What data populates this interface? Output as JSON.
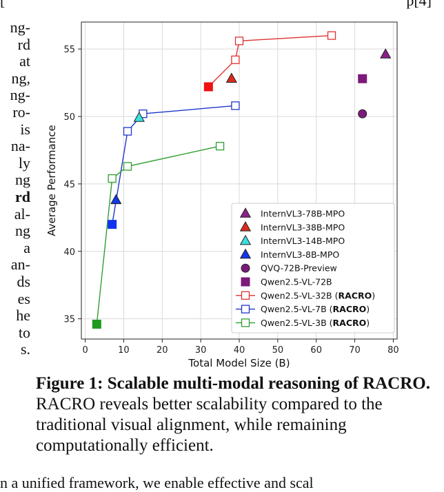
{
  "left_fragments": [
    "ng-",
    "rd",
    "at",
    "ng,",
    "ng-",
    "ro-",
    "is",
    "na-",
    "ly",
    "ng",
    "rd",
    "al-",
    "ng",
    "a",
    "an-",
    "ds",
    "es",
    "he",
    "to",
    "s."
  ],
  "top_fragment": {
    "left": "[",
    "right": "p[4]"
  },
  "bottom_fragment": "n a unified framework, we enable effective and scal",
  "chart_data": {
    "type": "scatter",
    "xlabel": "Total Model Size (B)",
    "ylabel": "Average Performance",
    "xlim": [
      -1,
      81
    ],
    "ylim": [
      33.5,
      57
    ],
    "xticks": [
      0,
      10,
      20,
      30,
      40,
      50,
      60,
      70,
      80
    ],
    "yticks": [
      35,
      40,
      45,
      50,
      55
    ],
    "grid": true,
    "legend_position": "lower-right",
    "points": [
      {
        "name": "InternVL3-78B-MPO",
        "marker": "triangle",
        "color": "#8b1f8b",
        "x": 78,
        "y": 54.6
      },
      {
        "name": "InternVL3-38B-MPO",
        "marker": "triangle",
        "color": "#dd2a1e",
        "x": 38,
        "y": 52.8
      },
      {
        "name": "InternVL3-14B-MPO",
        "marker": "triangle",
        "color": "#38e0e0",
        "x": 14,
        "y": 49.9
      },
      {
        "name": "InternVL3-8B-MPO",
        "marker": "triangle",
        "color": "#1437e8",
        "x": 8,
        "y": 43.8
      },
      {
        "name": "QVQ-72B-Preview",
        "marker": "circle",
        "color": "#7b1a7b",
        "x": 72,
        "y": 50.2
      },
      {
        "name": "Qwen2.5-VL-72B",
        "marker": "square",
        "color": "#7b1a7b",
        "x": 72,
        "y": 52.8
      },
      {
        "name": "Qwen2.5-VL-32B",
        "marker": "square",
        "color": "#ee1111",
        "x": 32,
        "y": 52.2
      },
      {
        "name": "Qwen2.5-VL-7B",
        "marker": "square",
        "color": "#1133ee",
        "x": 7,
        "y": 42.0
      },
      {
        "name": "Qwen2.5-VL-3B",
        "marker": "square",
        "color": "#1f9a1f",
        "x": 3,
        "y": 34.6
      }
    ],
    "series": [
      {
        "name": "Qwen2.5-VL-32B (RACRO)",
        "color": "#e03131",
        "x": [
          32,
          39,
          40,
          64
        ],
        "y": [
          52.2,
          54.2,
          55.6,
          56.0
        ]
      },
      {
        "name": "Qwen2.5-VL-7B (RACRO)",
        "color": "#1f35c8",
        "x": [
          7,
          11,
          15,
          39
        ],
        "y": [
          42.0,
          48.9,
          50.2,
          50.8
        ]
      },
      {
        "name": "Qwen2.5-VL-3B (RACRO)",
        "color": "#2e9e2e",
        "x": [
          3,
          7,
          11,
          35
        ],
        "y": [
          34.6,
          45.4,
          46.3,
          47.8
        ]
      }
    ],
    "legend": [
      {
        "kind": "triangle",
        "color": "#8b1f8b",
        "label": "InternVL3-78B-MPO",
        "bold": ""
      },
      {
        "kind": "triangle",
        "color": "#dd2a1e",
        "label": "InternVL3-38B-MPO",
        "bold": ""
      },
      {
        "kind": "triangle",
        "color": "#38e0e0",
        "label": "InternVL3-14B-MPO",
        "bold": ""
      },
      {
        "kind": "triangle",
        "color": "#1437e8",
        "label": "InternVL3-8B-MPO",
        "bold": ""
      },
      {
        "kind": "circle",
        "color": "#7b1a7b",
        "label": "QVQ-72B-Preview",
        "bold": ""
      },
      {
        "kind": "square",
        "color": "#7b1a7b",
        "label": "Qwen2.5-VL-72B",
        "bold": ""
      },
      {
        "kind": "line",
        "color": "#e03131",
        "label": "Qwen2.5-VL-32B (",
        "bold": "RACRO",
        "tail": ")"
      },
      {
        "kind": "line",
        "color": "#1f35c8",
        "label": "Qwen2.5-VL-7B (",
        "bold": "RACRO",
        "tail": ")"
      },
      {
        "kind": "line",
        "color": "#2e9e2e",
        "label": "Qwen2.5-VL-3B (",
        "bold": "RACRO",
        "tail": ")"
      }
    ]
  },
  "caption": {
    "prefix": "Figure 1: ",
    "bold": "Scalable multi-modal reasoning of RACRO.",
    "rest": " RACRO reveals better scalability compared to the traditional visual alignment, while remaining computationally efficient."
  }
}
